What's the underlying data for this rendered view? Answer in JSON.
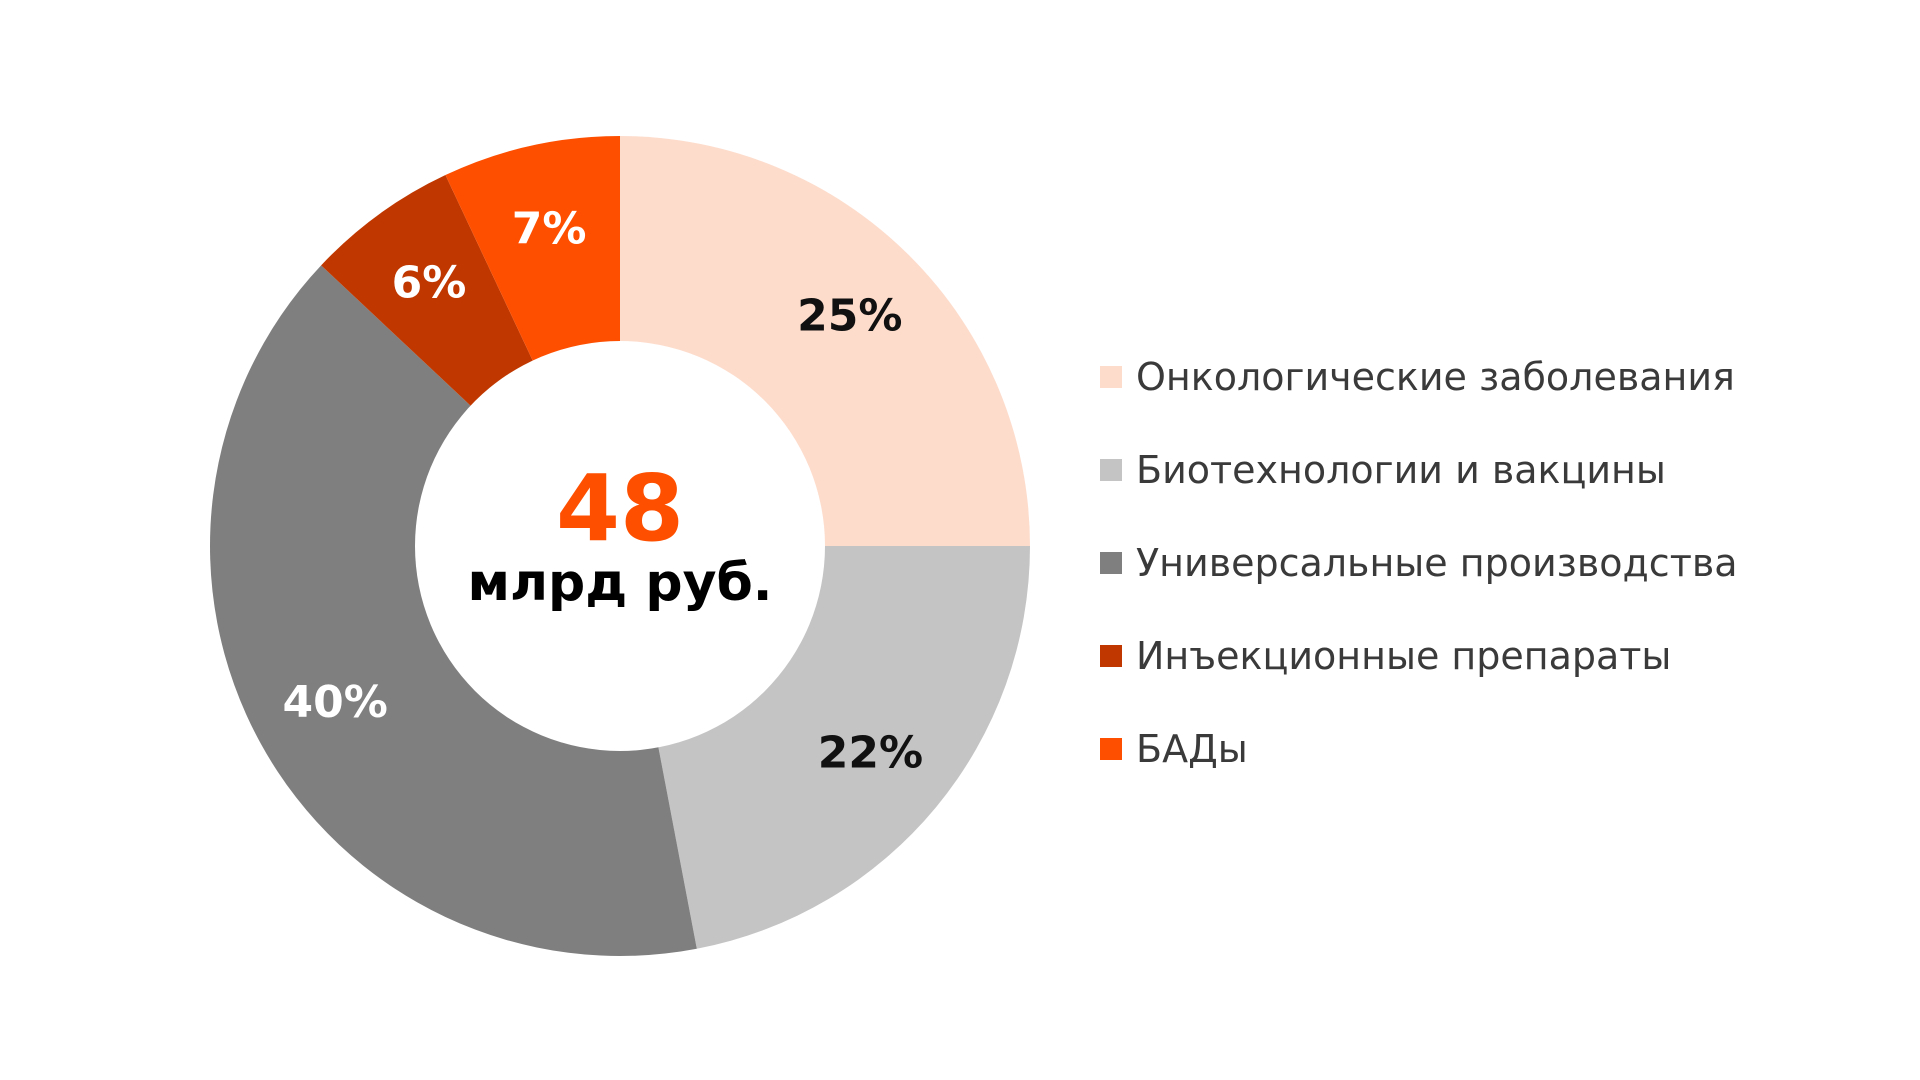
{
  "chart_data": {
    "type": "pie",
    "variant": "donut",
    "categories": [
      "Онкологические заболевания",
      "Биотехнологии и вакцины",
      "Универсальные производства",
      "Инъекционные препараты",
      "БАДы"
    ],
    "values": [
      25,
      22,
      40,
      6,
      7
    ],
    "value_labels": [
      "25%",
      "22%",
      "40%",
      "6%",
      "7%"
    ],
    "colors": [
      "#fddccc",
      "#c4c4c4",
      "#7f7f7f",
      "#c03800",
      "#fe4f00"
    ],
    "label_colors": [
      "#111111",
      "#111111",
      "#ffffff",
      "#ffffff",
      "#ffffff"
    ],
    "center": {
      "value": "48",
      "unit": "млрд руб.",
      "value_color": "#fe4f00",
      "unit_color": "#000000"
    },
    "legend_position": "right",
    "start_angle": "12 o'clock",
    "direction": "clockwise"
  }
}
